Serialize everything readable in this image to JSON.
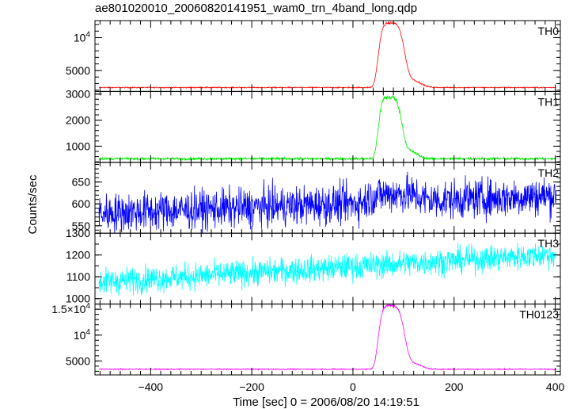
{
  "chart_data": {
    "type": "line",
    "title": "ae801020010_20060820141951_wam0_trn_4band_long.qdp",
    "xlabel": "Time [sec] 0 = 2006/08/20 14:19:51",
    "ylabel": "Counts/sec",
    "xlim": [
      -510,
      410
    ],
    "x_ticks": [
      "−400",
      "−200",
      "0",
      "200",
      "400"
    ],
    "x_tick_values": [
      -400,
      -200,
      0,
      200,
      400
    ],
    "panels": [
      {
        "name": "TH0",
        "color": "#ff0000",
        "ylim": [
          1800,
          12600
        ],
        "ticks": [
          {
            "value": 5000,
            "label": "5000"
          },
          {
            "value": 10000,
            "label": "10",
            "exp": "4"
          }
        ],
        "baseline": 2400,
        "slope": 0,
        "noise": 40,
        "peak": {
          "amp": 9800,
          "center": 72,
          "rise": 22,
          "decay": 30,
          "tail_amp": 1100,
          "tail_center": 118,
          "tail_width": 22
        }
      },
      {
        "name": "TH1",
        "color": "#00ee00",
        "ylim": [
          380,
          3100
        ],
        "ticks": [
          {
            "value": 1000,
            "label": "1000"
          },
          {
            "value": 2000,
            "label": "2000"
          },
          {
            "value": 3000,
            "label": "3000"
          }
        ],
        "baseline": 520,
        "slope": 0,
        "noise": 25,
        "peak": {
          "amp": 2350,
          "center": 70,
          "rise": 20,
          "decay": 27,
          "tail_amp": 300,
          "tail_center": 112,
          "tail_width": 20
        }
      },
      {
        "name": "TH2",
        "color": "#0000ff",
        "ylim": [
          533,
          695
        ],
        "ticks": [
          {
            "value": 550,
            "label": "550"
          },
          {
            "value": 600,
            "label": "600"
          },
          {
            "value": 650,
            "label": "650"
          }
        ],
        "baseline": 578,
        "slope": 0.045,
        "noise": 22,
        "peak": {
          "amp": 18,
          "center": 70,
          "rise": 40,
          "decay": 60,
          "tail_amp": 0,
          "tail_center": 0,
          "tail_width": 1
        }
      },
      {
        "name": "TH3",
        "color": "#00ffff",
        "ylim": [
          975,
          1300
        ],
        "ticks": [
          {
            "value": 1000,
            "label": "1000"
          },
          {
            "value": 1100,
            "label": "1100"
          },
          {
            "value": 1200,
            "label": "1200"
          },
          {
            "value": 1300,
            "label": "1300"
          }
        ],
        "baseline": 1075,
        "slope": 0.14,
        "noise": 30,
        "peak": {
          "amp": 0,
          "center": 70,
          "rise": 20,
          "decay": 30,
          "tail_amp": 0,
          "tail_center": 0,
          "tail_width": 1
        }
      },
      {
        "name": "TH0123",
        "color": "#ff00ff",
        "ylim": [
          2300,
          16000
        ],
        "ticks": [
          {
            "value": 5000,
            "label": "5000"
          },
          {
            "value": 10000,
            "label": "10",
            "exp": "4"
          },
          {
            "value": 15000,
            "label": "1.5×10",
            "exp": "4"
          }
        ],
        "baseline": 3400,
        "slope": 0,
        "noise": 55,
        "peak": {
          "amp": 12300,
          "center": 72,
          "rise": 22,
          "decay": 30,
          "tail_amp": 1200,
          "tail_center": 118,
          "tail_width": 22
        }
      }
    ]
  }
}
